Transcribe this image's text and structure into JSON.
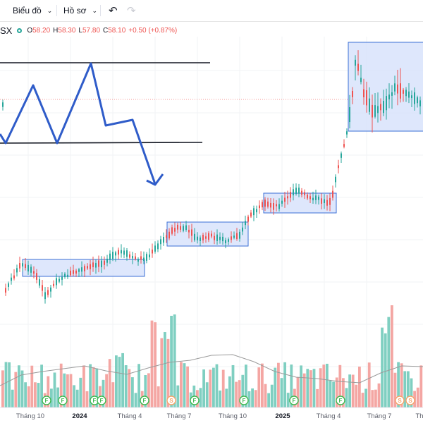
{
  "toolbar": {
    "chart_menu": "Biểu đồ",
    "profile_menu": "Hồ sơ",
    "undo_icon": "undo-icon",
    "redo_icon": "redo-icon"
  },
  "legend": {
    "symbol_suffix": "SX",
    "open_label": "O",
    "open": "58.20",
    "high_label": "H",
    "high": "58.30",
    "low_label": "L",
    "low": "57.80",
    "close_label": "C",
    "close": "58.10",
    "change": "+0.50 (+0.87%)"
  },
  "colors": {
    "up": "#26a69a",
    "down": "#ef5350",
    "volume_up": "#7fcfc1",
    "volume_down": "#f4a6a3",
    "zone_fill": "#d6e1fb",
    "zone_stroke": "#3b6fd6",
    "pattern": "#2f5cc9",
    "ma_line": "#9a9a9a"
  },
  "chart_data": {
    "type": "candlestick",
    "x_axis_labels": [
      "Tháng 10",
      "2024",
      "Tháng 4",
      "Tháng 7",
      "Tháng 10",
      "2025",
      "Tháng 4",
      "Tháng 7",
      "Th"
    ],
    "bold_labels": [
      "2024",
      "2025"
    ],
    "event_markers": [
      {
        "letter": "F",
        "period": "Tháng 10"
      },
      {
        "letter": "F",
        "period": "2024"
      },
      {
        "letter": "F",
        "period": "2024"
      },
      {
        "letter": "F",
        "period": "2024"
      },
      {
        "letter": "F",
        "period": "Tháng 4"
      },
      {
        "letter": "S",
        "period": "Tháng 4"
      },
      {
        "letter": "F",
        "period": "Tháng 7"
      },
      {
        "letter": "F",
        "period": "Tháng 10"
      },
      {
        "letter": "F",
        "period": "2025"
      },
      {
        "letter": "F",
        "period": "Tháng 4"
      },
      {
        "letter": "S",
        "period": "Tháng 7"
      },
      {
        "letter": "S",
        "period": "Th"
      }
    ],
    "annotations": [
      "double-top pattern",
      "resistance line",
      "support line",
      "breakdown arrow",
      "consolidation boxes"
    ],
    "grid": true
  }
}
